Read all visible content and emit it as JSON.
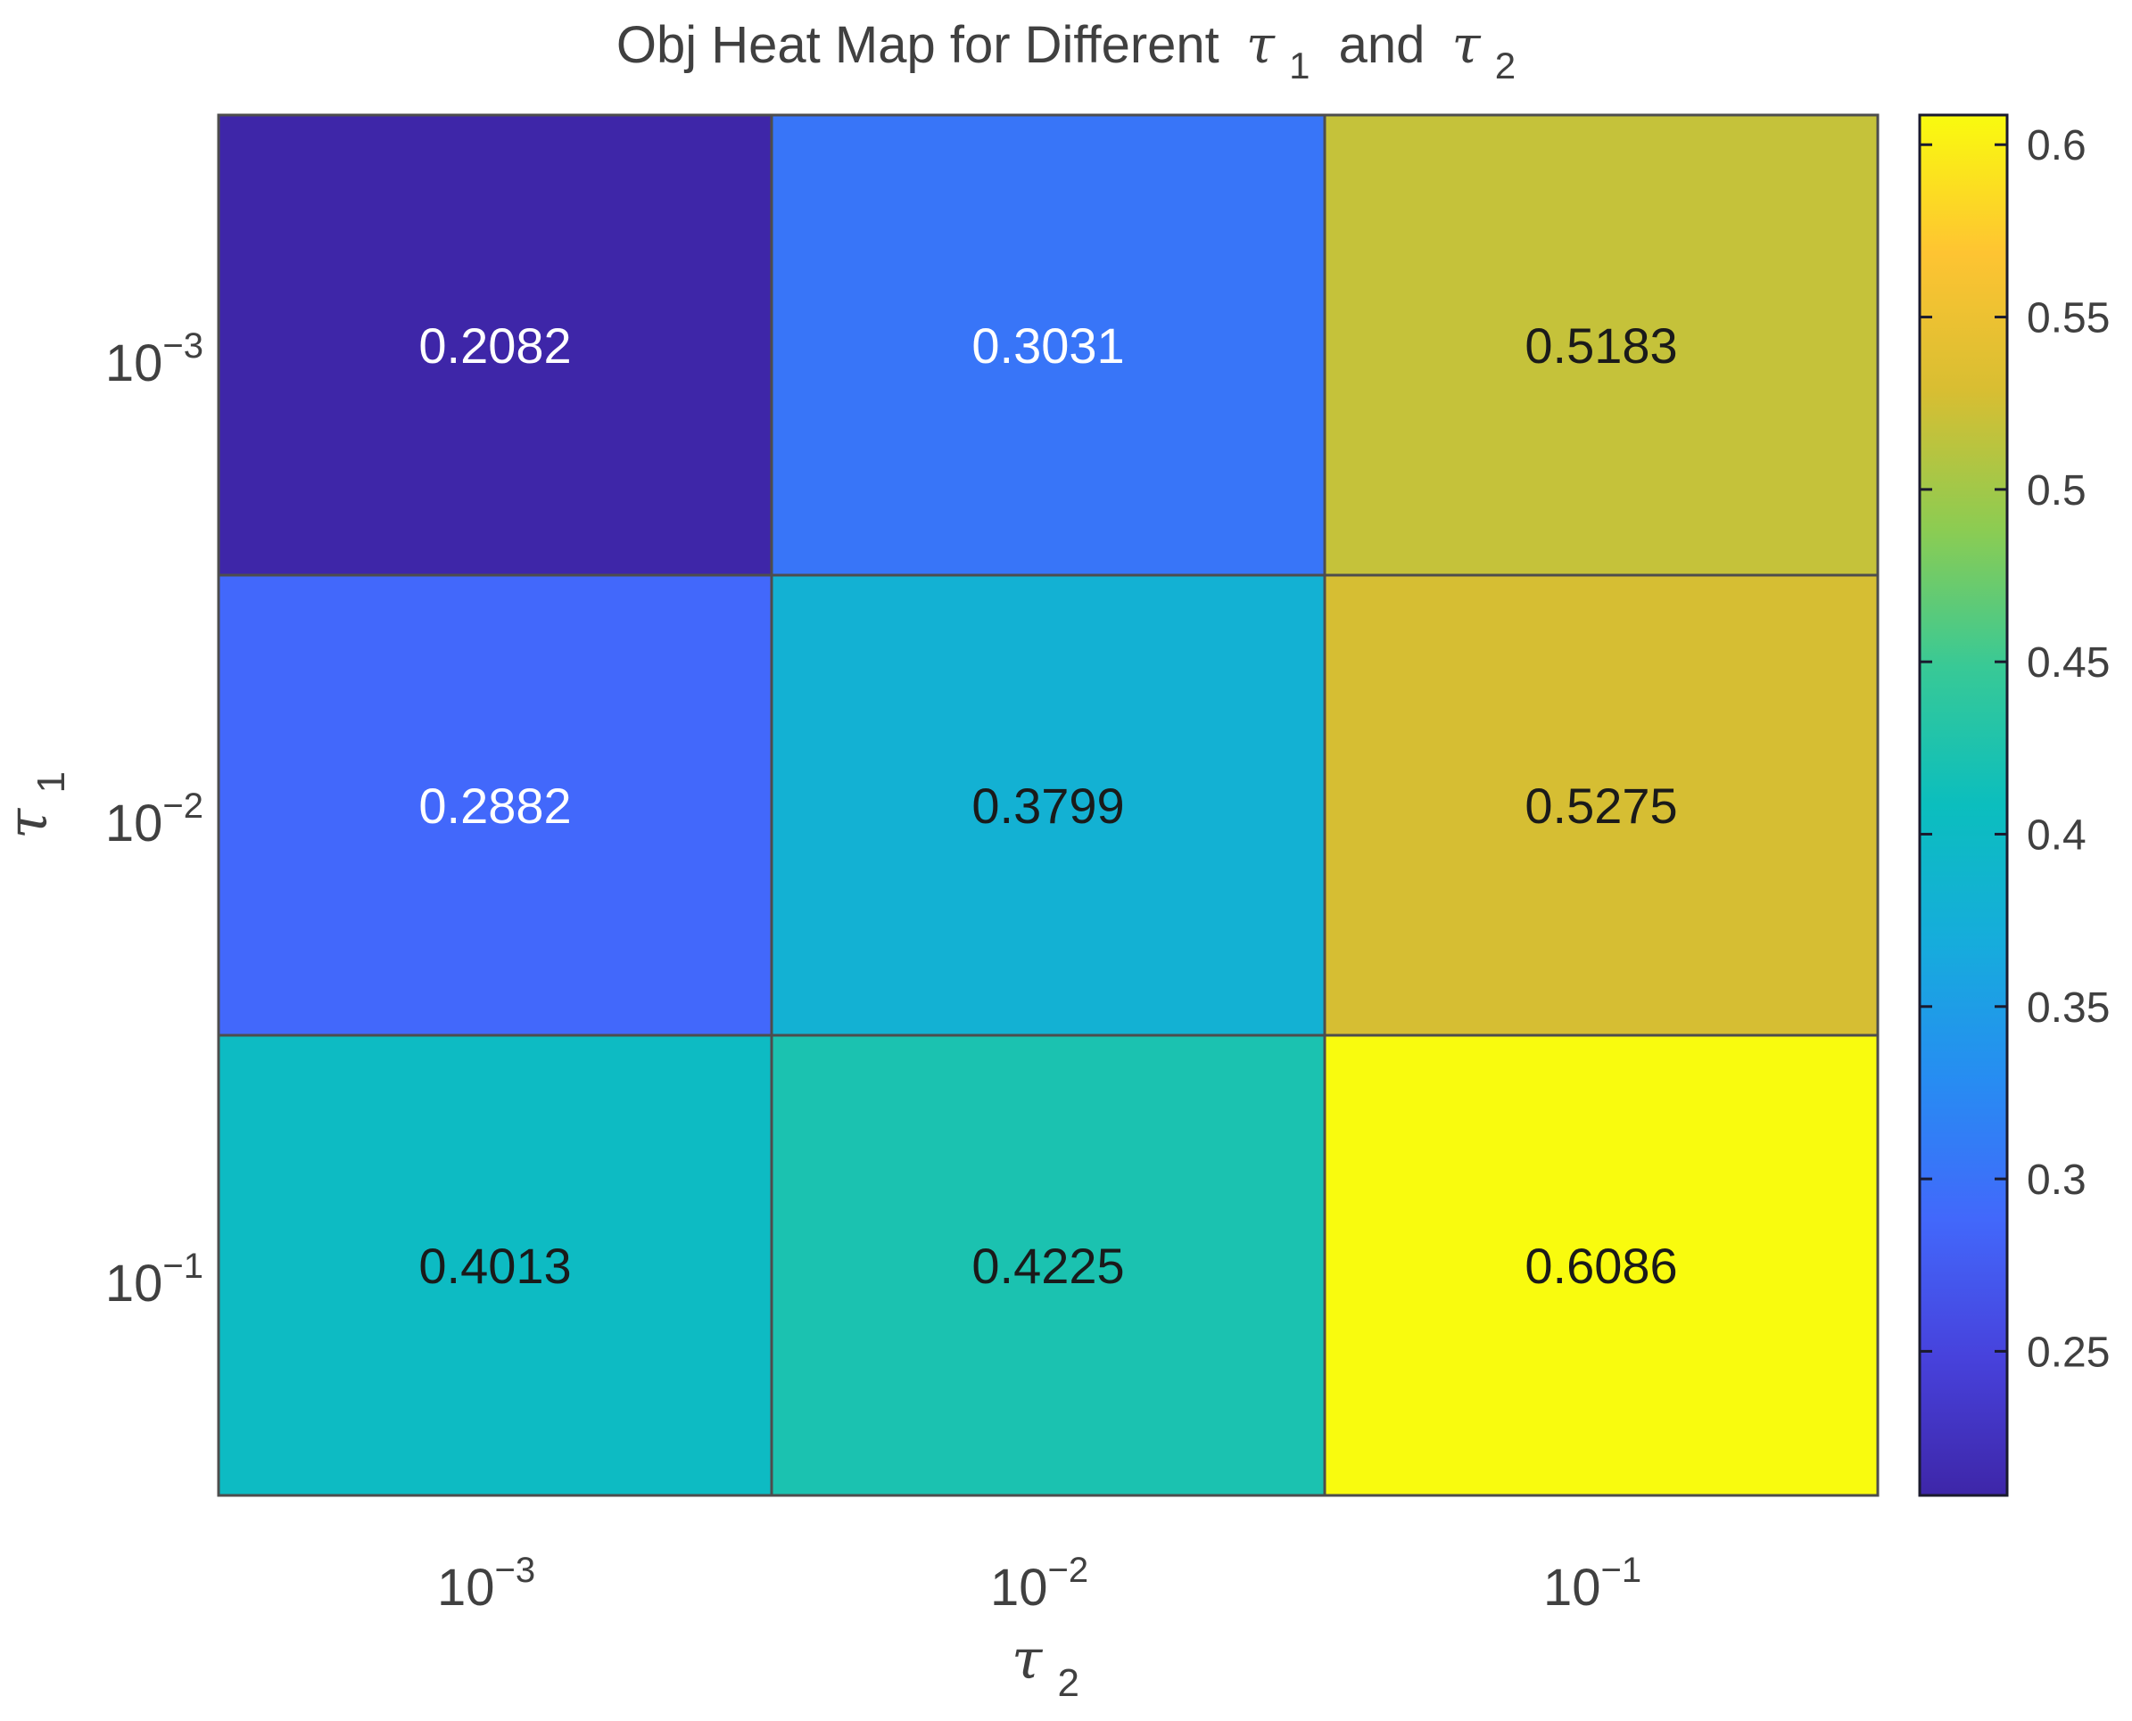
{
  "chart_data": {
    "type": "heatmap",
    "title_prefix": "Obj Heat Map for Different",
    "title_joiner": "and",
    "title_symbol_1": "τ",
    "title_sub_1": "1",
    "title_symbol_2": "τ",
    "title_sub_2": "2",
    "xlabel_symbol": "τ",
    "xlabel_sub": "2",
    "ylabel_symbol": "τ",
    "ylabel_sub": "1",
    "x_ticks": [
      {
        "base": "10",
        "exp": "−3"
      },
      {
        "base": "10",
        "exp": "−2"
      },
      {
        "base": "10",
        "exp": "−1"
      }
    ],
    "y_ticks": [
      {
        "base": "10",
        "exp": "−3"
      },
      {
        "base": "10",
        "exp": "−2"
      },
      {
        "base": "10",
        "exp": "−1"
      }
    ],
    "values": [
      [
        0.2082,
        0.3031,
        0.5183
      ],
      [
        0.2882,
        0.3799,
        0.5275
      ],
      [
        0.4013,
        0.4225,
        0.6086
      ]
    ],
    "value_labels": [
      [
        "0.2082",
        "0.3031",
        "0.5183"
      ],
      [
        "0.2882",
        "0.3799",
        "0.5275"
      ],
      [
        "0.4013",
        "0.4225",
        "0.6086"
      ]
    ],
    "colorbar": {
      "min": 0.2082,
      "max": 0.6086,
      "ticks": [
        0.25,
        0.3,
        0.35,
        0.4,
        0.45,
        0.5,
        0.55,
        0.6
      ],
      "tick_labels": [
        "0.25",
        "0.3",
        "0.35",
        "0.4",
        "0.45",
        "0.5",
        "0.55",
        "0.6"
      ]
    },
    "colormap": "parula",
    "label_dark_color": "#1a1a1a",
    "label_light_color": "#ffffff",
    "grid": false,
    "legend": "colorbar-right"
  }
}
